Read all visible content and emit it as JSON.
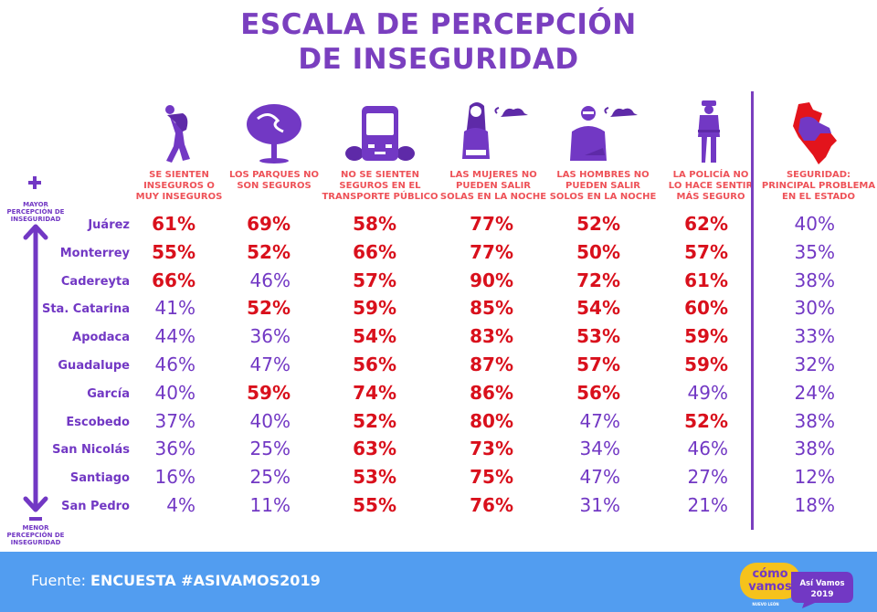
{
  "title": {
    "line1": "ESCALA DE PERCEPCIÓN",
    "line2": "DE INSEGURIDAD"
  },
  "scale": {
    "top_symbol": "plus-icon",
    "top_label": [
      "MAYOR",
      "PERCEPCIÓN DE",
      "INSEGURIDAD"
    ],
    "bottom_symbol": "minus-icon",
    "bottom_label": [
      "MENOR",
      "PERCEPCIÓN DE",
      "INSEGURIDAD"
    ]
  },
  "columns": [
    {
      "icon": "thief-icon",
      "label": [
        "SE SIENTEN",
        "INSEGUROS O",
        "MUY INSEGUROS"
      ]
    },
    {
      "icon": "tree-icon",
      "label": [
        "LOS PARQUES NO",
        "SON SEGUROS"
      ]
    },
    {
      "icon": "bus-icon",
      "label": [
        "NO SE SIENTEN",
        "SEGUROS EN EL",
        "TRANSPORTE PÚBLICO"
      ]
    },
    {
      "icon": "woman-night-icon",
      "label": [
        "LAS MUJERES NO",
        "PUEDEN SALIR",
        "SOLAS EN LA NOCHE"
      ]
    },
    {
      "icon": "man-night-icon",
      "label": [
        "LAS HOMBRES NO",
        "PUEDEN SALIR",
        "SOLOS EN LA NOCHE"
      ]
    },
    {
      "icon": "police-icon",
      "label": [
        "LA POLICÍA NO",
        "LO HACE SENTIR",
        "MÁS SEGURO"
      ]
    },
    {
      "icon": "state-map-icon",
      "label": [
        "SEGURIDAD:",
        "PRINCIPAL PROBLEMA",
        "EN EL ESTADO"
      ]
    }
  ],
  "rows": [
    {
      "name": "Juárez",
      "values": [
        "61%",
        "69%",
        "58%",
        "77%",
        "52%",
        "62%",
        "40%"
      ],
      "highlight": [
        1,
        1,
        1,
        1,
        1,
        1,
        0
      ]
    },
    {
      "name": "Monterrey",
      "values": [
        "55%",
        "52%",
        "66%",
        "77%",
        "50%",
        "57%",
        "35%"
      ],
      "highlight": [
        1,
        1,
        1,
        1,
        1,
        1,
        0
      ]
    },
    {
      "name": "Cadereyta",
      "values": [
        "66%",
        "46%",
        "57%",
        "90%",
        "72%",
        "61%",
        "38%"
      ],
      "highlight": [
        1,
        0,
        1,
        1,
        1,
        1,
        0
      ]
    },
    {
      "name": "Sta.  Catarina",
      "values": [
        "41%",
        "52%",
        "59%",
        "85%",
        "54%",
        "60%",
        "30%"
      ],
      "highlight": [
        0,
        1,
        1,
        1,
        1,
        1,
        0
      ]
    },
    {
      "name": "Apodaca",
      "values": [
        "44%",
        "36%",
        "54%",
        "83%",
        "53%",
        "59%",
        "33%"
      ],
      "highlight": [
        0,
        0,
        1,
        1,
        1,
        1,
        0
      ]
    },
    {
      "name": "Guadalupe",
      "values": [
        "46%",
        "47%",
        "56%",
        "87%",
        "57%",
        "59%",
        "32%"
      ],
      "highlight": [
        0,
        0,
        1,
        1,
        1,
        1,
        0
      ]
    },
    {
      "name": "García",
      "values": [
        "40%",
        "59%",
        "74%",
        "86%",
        "56%",
        "49%",
        "24%"
      ],
      "highlight": [
        0,
        1,
        1,
        1,
        1,
        0,
        0
      ]
    },
    {
      "name": "Escobedo",
      "values": [
        "37%",
        "40%",
        "52%",
        "80%",
        "47%",
        "52%",
        "38%"
      ],
      "highlight": [
        0,
        0,
        1,
        1,
        0,
        1,
        0
      ]
    },
    {
      "name": "San Nicolás",
      "values": [
        "36%",
        "25%",
        "63%",
        "73%",
        "34%",
        "46%",
        "38%"
      ],
      "highlight": [
        0,
        0,
        1,
        1,
        0,
        0,
        0
      ]
    },
    {
      "name": "Santiago",
      "values": [
        "16%",
        "25%",
        "53%",
        "75%",
        "47%",
        "27%",
        "12%"
      ],
      "highlight": [
        0,
        0,
        1,
        1,
        0,
        0,
        0
      ]
    },
    {
      "name": "San Pedro",
      "values": [
        "4%",
        "11%",
        "55%",
        "76%",
        "31%",
        "21%",
        "18%"
      ],
      "highlight": [
        0,
        0,
        1,
        1,
        0,
        0,
        0
      ]
    }
  ],
  "colors": {
    "purple": "#7238c4",
    "title_purple": "#7a3fbf",
    "highlight_red": "#d9101c",
    "header_coral": "#ee5258",
    "footer_blue": "#529df0",
    "logo_yellow": "#f6c21c"
  },
  "footer": {
    "prefix": "Fuente: ",
    "source": "ENCUESTA #ASIVAMOS2019",
    "logo": {
      "brand_line1": "cómo",
      "brand_line2": "vamos",
      "brand_sub": "NUEVO LEÓN",
      "bubble_line1": "Así Vamos",
      "bubble_line2": "2019"
    }
  }
}
